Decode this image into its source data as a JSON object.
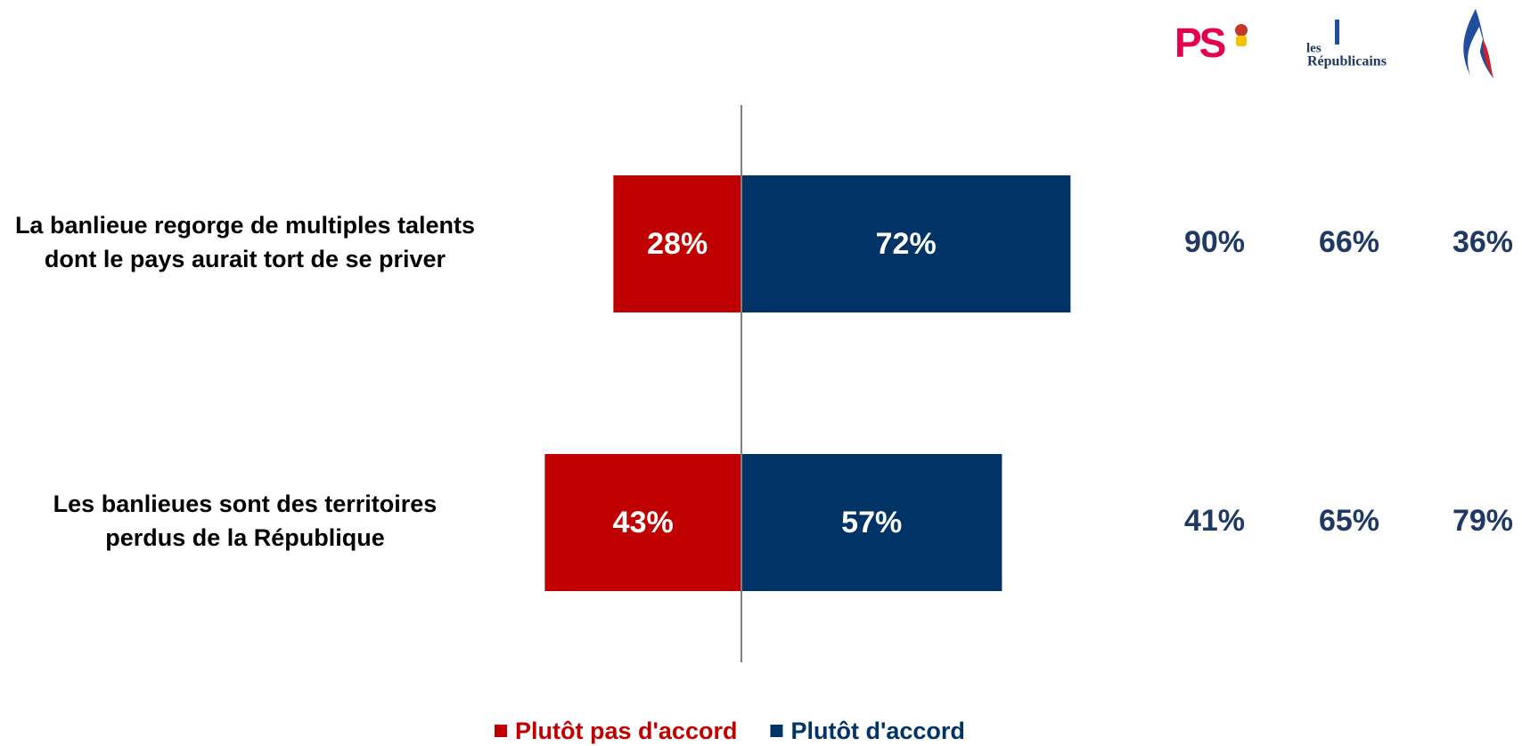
{
  "chart_data": {
    "type": "diverging-bar",
    "categories": [
      [
        "La banlieue regorge de multiples talents",
        "dont le pays aurait tort de se priver"
      ],
      [
        "Les banlieues sont des territoires",
        "perdus de la République"
      ]
    ],
    "series": [
      {
        "name": "Plutôt pas d'accord",
        "color": "#c00000",
        "direction": "left",
        "values": [
          28,
          43
        ],
        "value_labels": [
          "28%",
          "43%"
        ]
      },
      {
        "name": "Plutôt d'accord",
        "color": "#003366",
        "direction": "right",
        "values": [
          72,
          57
        ],
        "value_labels": [
          "72%",
          "57%"
        ]
      }
    ],
    "party_columns": [
      {
        "label": "PS",
        "values": [
          90,
          41
        ],
        "value_labels": [
          "90%",
          "41%"
        ]
      },
      {
        "label": [
          "les",
          "Républicains"
        ],
        "values": [
          66,
          65
        ],
        "value_labels": [
          "66%",
          "65%"
        ]
      },
      {
        "values": [
          36,
          79
        ],
        "value_labels": [
          "36%",
          "79%"
        ]
      }
    ],
    "party_color": "#1f3864"
  }
}
